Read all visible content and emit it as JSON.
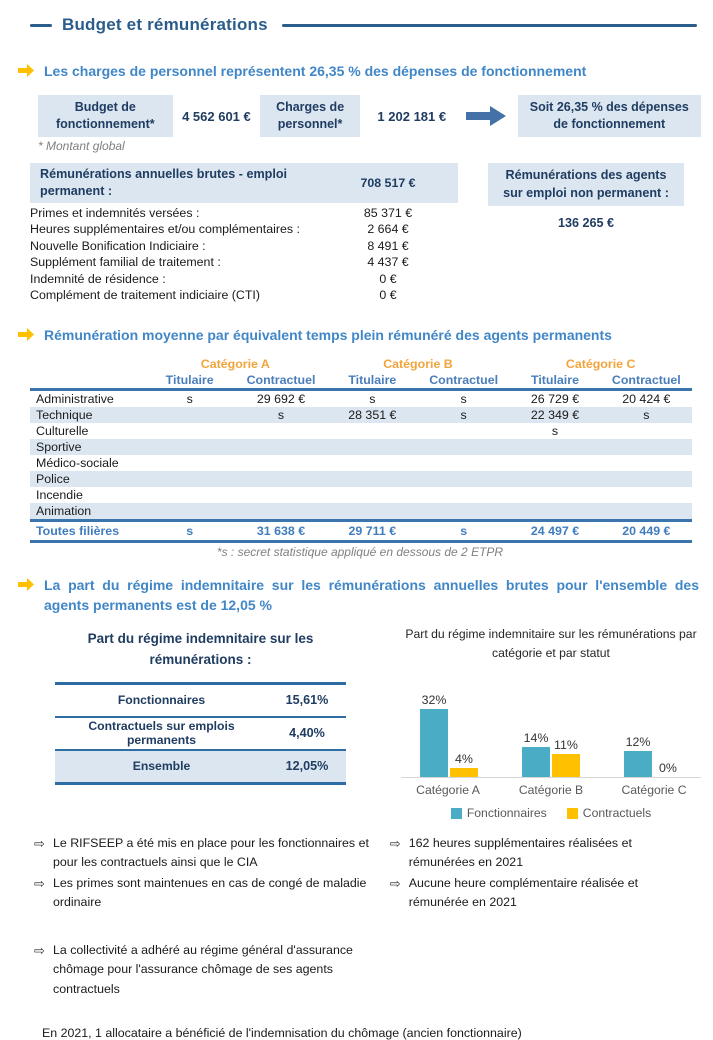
{
  "page": {
    "title": "Budget et rémunérations"
  },
  "colors": {
    "navy": "#1F3C61",
    "heading_blue": "#4187C7",
    "rule_blue": "#2B5D8C",
    "gold": "#F2A43C",
    "table_border_blue": "#3A76AD",
    "row_shade": "#DCE6F1",
    "teal": "#4BACC6",
    "yellow": "#FFC000"
  },
  "section1": {
    "heading": "Les charges de personnel représentent 26,35 % des dépenses de fonctionnement",
    "flow": {
      "box1_label": "Budget de fonctionnement*",
      "box1_value": "4 562 601 €",
      "box2_label": "Charges de personnel*",
      "box2_value": "1 202 181 €",
      "result_label": "Soit 26,35 % des dépenses de fonctionnement"
    },
    "footnote": "* Montant global",
    "perm_table": {
      "header_label": "Rémunérations annuelles brutes - emploi permanent :",
      "header_value": "708 517 €",
      "rows": [
        {
          "label": "Primes et indemnités versées :",
          "value": "85 371 €"
        },
        {
          "label": "Heures supplémentaires et/ou complémentaires :",
          "value": "2 664 €"
        },
        {
          "label": "Nouvelle Bonification Indiciaire :",
          "value": "8 491 €"
        },
        {
          "label": "Supplément familial de traitement :",
          "value": "4 437 €"
        },
        {
          "label": "Indemnité de résidence :",
          "value": "0 €"
        },
        {
          "label": "Complément de traitement indiciaire (CTI)",
          "value": "0 €"
        }
      ]
    },
    "non_perm": {
      "label": "Rémunérations des agents sur emploi non permanent :",
      "value": "136 265 €"
    }
  },
  "section2": {
    "heading": "Rémunération moyenne par équivalent temps plein rémunéré des agents permanents",
    "table": {
      "categories": [
        "Catégorie A",
        "Catégorie B",
        "Catégorie C"
      ],
      "subheaders": [
        "Titulaire",
        "Contractuel"
      ],
      "rows": [
        {
          "label": "Administrative",
          "values": [
            "s",
            "29 692 €",
            "s",
            "s",
            "26 729 €",
            "20 424 €"
          ]
        },
        {
          "label": "Technique",
          "values": [
            "",
            "s",
            "28 351 €",
            "s",
            "22 349 €",
            "s"
          ]
        },
        {
          "label": "Culturelle",
          "values": [
            "",
            "",
            "",
            "",
            "s",
            ""
          ]
        },
        {
          "label": "Sportive",
          "values": [
            "",
            "",
            "",
            "",
            "",
            ""
          ]
        },
        {
          "label": "Médico-sociale",
          "values": [
            "",
            "",
            "",
            "",
            "",
            ""
          ]
        },
        {
          "label": "Police",
          "values": [
            "",
            "",
            "",
            "",
            "",
            ""
          ]
        },
        {
          "label": "Incendie",
          "values": [
            "",
            "",
            "",
            "",
            "",
            ""
          ]
        },
        {
          "label": "Animation",
          "values": [
            "",
            "",
            "",
            "",
            "",
            ""
          ]
        }
      ],
      "total": {
        "label": "Toutes filières",
        "values": [
          "s",
          "31 638 €",
          "29 711 €",
          "s",
          "24 497 €",
          "20 449 €"
        ]
      },
      "footnote": "*s : secret statistique appliqué en dessous de 2 ETPR"
    }
  },
  "section3": {
    "heading": "La part du régime indemnitaire sur les rémunérations annuelles brutes pour l'ensemble des agents permanents est de 12,05 %",
    "table": {
      "title": "Part du régime indemnitaire sur les rémunérations :",
      "rows": [
        {
          "label": "Fonctionnaires",
          "value": "15,61%",
          "shaded": false
        },
        {
          "label": "Contractuels sur emplois permanents",
          "value": "4,40%",
          "shaded": false
        },
        {
          "label": "Ensemble",
          "value": "12,05%",
          "shaded": true
        }
      ]
    }
  },
  "chart_data": {
    "type": "bar",
    "title": "Part du régime indemnitaire sur les rémunérations par catégorie et par statut",
    "categories": [
      "Catégorie A",
      "Catégorie B",
      "Catégorie C"
    ],
    "series": [
      {
        "name": "Fonctionnaires",
        "color": "#4BACC6",
        "values": [
          32,
          14,
          12
        ]
      },
      {
        "name": "Contractuels",
        "color": "#FFC000",
        "values": [
          4,
          11,
          0
        ]
      }
    ],
    "data_labels": [
      [
        "32%",
        "14%",
        "12%"
      ],
      [
        "4%",
        "11%",
        "0%"
      ]
    ],
    "ylabel": "",
    "xlabel": "",
    "ylim": [
      0,
      35
    ],
    "grid": false,
    "legend_position": "bottom"
  },
  "notes": {
    "bullet_icon": "⇨",
    "left": [
      "Le RIFSEEP a été mis en place pour les fonctionnaires et pour les contractuels ainsi que le CIA",
      "Les primes sont maintenues en cas de congé de maladie ordinaire",
      "La collectivité a adhéré au régime général d'assurance chômage pour l'assurance chômage de ses agents contractuels"
    ],
    "right": [
      "162 heures supplémentaires réalisées et rémunérées en 2021",
      "Aucune heure complémentaire réalisée et rémunérée en 2021"
    ],
    "closing": "En 2021, 1 allocataire a bénéficié de l'indemnisation du chômage (ancien fonctionnaire)"
  }
}
